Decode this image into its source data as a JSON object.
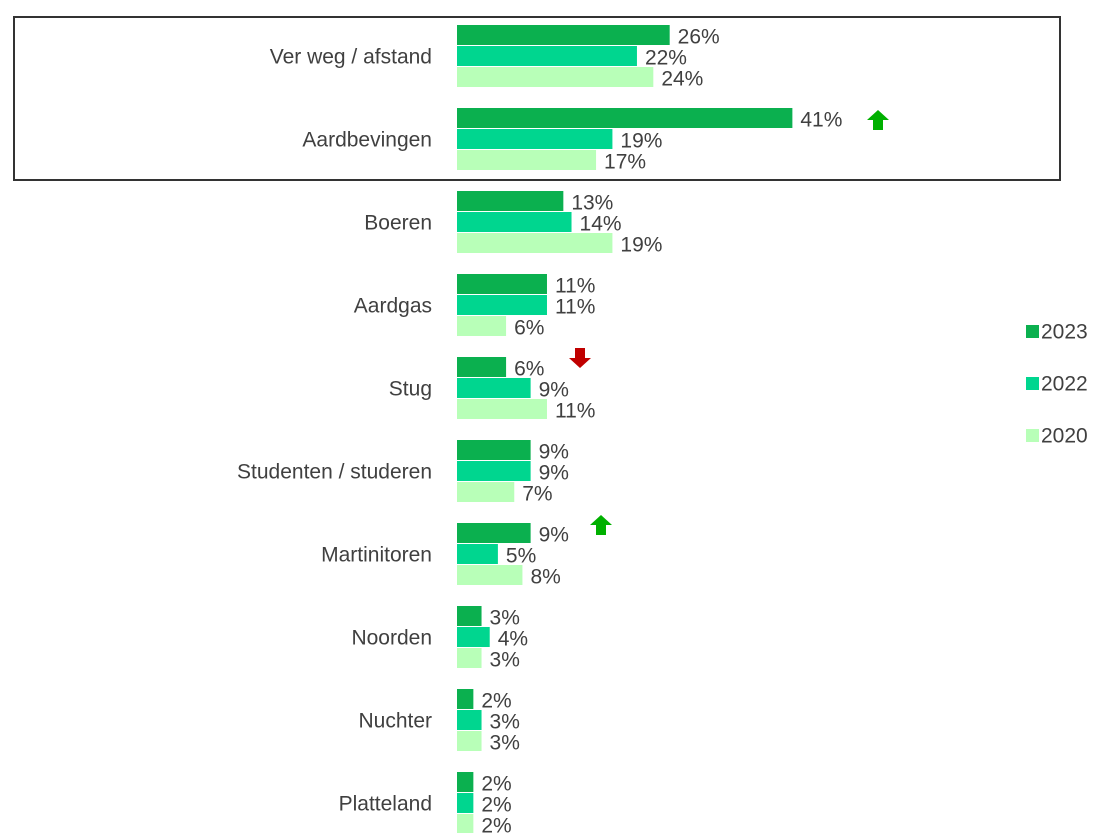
{
  "chart_data": {
    "type": "bar",
    "categories": [
      "Ver weg / afstand",
      "Aardbevingen",
      "Boeren",
      "Aardgas",
      "Stug",
      "Studenten / studeren",
      "Martinitoren",
      "Noorden",
      "Nuchter",
      "Platteland"
    ],
    "series": [
      {
        "name": "2023",
        "color": "#0bb04f",
        "values": [
          26,
          41,
          13,
          11,
          6,
          9,
          9,
          3,
          2,
          2
        ],
        "value_labels": [
          "26%",
          "41%",
          "13%",
          "11%",
          "6%",
          "9%",
          "9%",
          "3%",
          "2%",
          "2%"
        ]
      },
      {
        "name": "2022",
        "color": "#00d68f",
        "values": [
          22,
          19,
          14,
          11,
          9,
          9,
          5,
          4,
          3,
          2
        ],
        "value_labels": [
          "22%",
          "19%",
          "14%",
          "11%",
          "9%",
          "9%",
          "5%",
          "4%",
          "3%",
          "2%"
        ]
      },
      {
        "name": "2020",
        "color": "#b8ffb8",
        "values": [
          24,
          17,
          19,
          6,
          11,
          7,
          8,
          3,
          3,
          2
        ],
        "value_labels": [
          "24%",
          "17%",
          "19%",
          "6%",
          "11%",
          "7%",
          "8%",
          "3%",
          "3%",
          "2%"
        ]
      }
    ],
    "legend": "right"
  }
}
